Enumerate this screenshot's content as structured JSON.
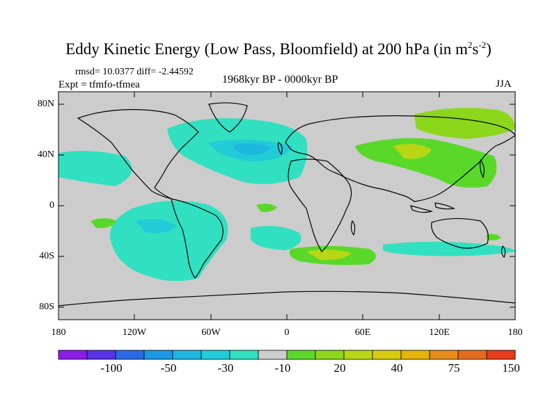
{
  "figure": {
    "title": "Eddy Kinetic Energy (Low Pass, Bloomfield) at 200 hPa (in m",
    "title_unit_exp1": "2",
    "title_unit_mid": "s",
    "title_unit_exp2": "-2",
    "title_close": ")",
    "stats": "rmsd= 10.0377 diff= -2.44592",
    "experiment": "Expt = tfmfo-tfmea",
    "period": "1968kyr BP - 0000kyr BP",
    "season": "JJA"
  },
  "map": {
    "background_color": "#cccccc",
    "coastline_color": "#000000",
    "lat_labels": [
      "80N",
      "40N",
      "0",
      "40S",
      "80S"
    ],
    "lon_labels": [
      "180",
      "120W",
      "60W",
      "0",
      "60E",
      "120E",
      "180"
    ]
  },
  "colorbar": {
    "colors": [
      "#8a1ee6",
      "#5a32e6",
      "#2a6ae6",
      "#1c98e6",
      "#1cb8e0",
      "#20ccd8",
      "#30e0c0",
      "#cccccc",
      "#5ad82a",
      "#8cd61c",
      "#b8d614",
      "#d8cc0c",
      "#e6b40a",
      "#e68a1c",
      "#e66a1c",
      "#e63c1c"
    ],
    "labels": [
      "-100",
      "-50",
      "-30",
      "-10",
      "20",
      "40",
      "75",
      "150"
    ]
  }
}
